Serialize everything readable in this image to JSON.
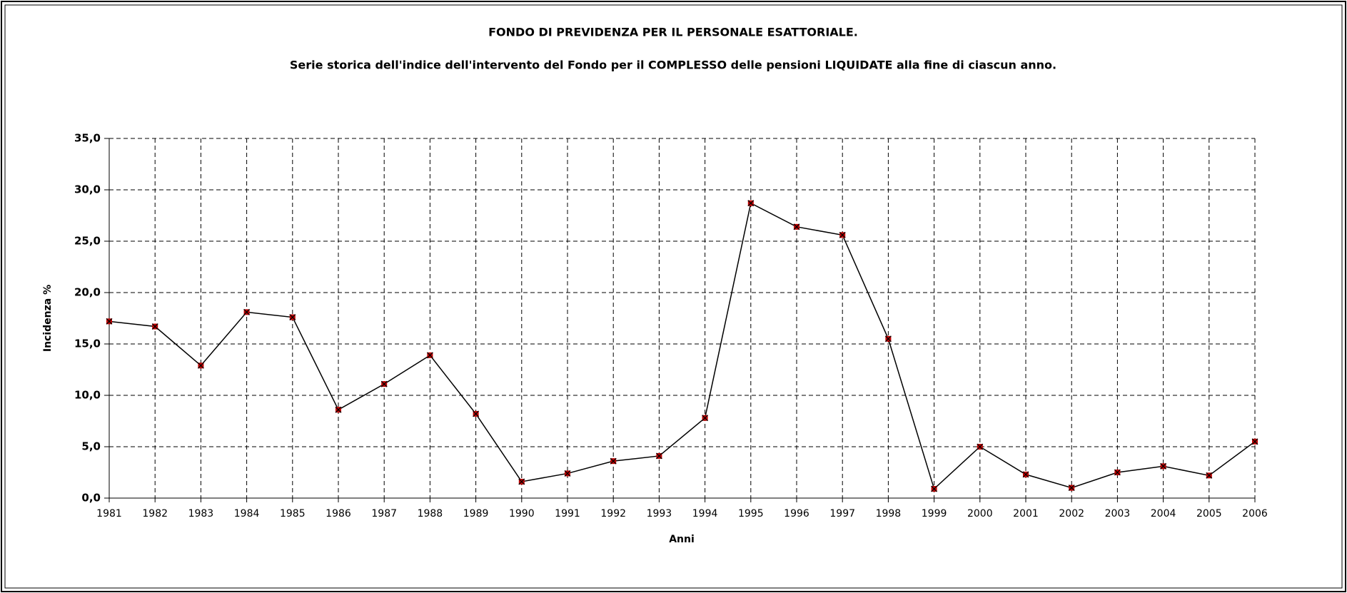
{
  "chart_data": {
    "type": "line",
    "title": "FONDO DI PREVIDENZA PER IL PERSONALE ESATTORIALE.",
    "subtitle": "Serie storica dell'indice dell'intervento del Fondo per il COMPLESSO delle pensioni LIQUIDATE alla fine di ciascun anno.",
    "xlabel": "Anni",
    "ylabel": "Incidenza %",
    "x": [
      1981,
      1982,
      1983,
      1984,
      1985,
      1986,
      1987,
      1988,
      1989,
      1990,
      1991,
      1992,
      1993,
      1994,
      1995,
      1996,
      1997,
      1998,
      1999,
      2000,
      2001,
      2002,
      2003,
      2004,
      2005,
      2006
    ],
    "series": [
      {
        "color": "#000000",
        "marker_color": "#c00000",
        "values": [
          17.2,
          16.7,
          12.9,
          18.1,
          17.6,
          8.6,
          11.1,
          13.9,
          8.2,
          1.6,
          2.4,
          3.6,
          4.1,
          7.8,
          28.7,
          26.4,
          25.6,
          15.5,
          0.9,
          5.0,
          2.3,
          1.0,
          2.5,
          3.1,
          2.2,
          5.5
        ]
      }
    ],
    "xlim": [
      1981,
      2006
    ],
    "xticks": [
      1981,
      1982,
      1983,
      1984,
      1985,
      1986,
      1987,
      1988,
      1989,
      1990,
      1991,
      1992,
      1993,
      1994,
      1995,
      1996,
      1997,
      1998,
      1999,
      2000,
      2001,
      2002,
      2003,
      2004,
      2005,
      2006
    ],
    "ylim": [
      0,
      35
    ],
    "yticks": [
      {
        "value": 0,
        "label": "0,0"
      },
      {
        "value": 5,
        "label": "5,0"
      },
      {
        "value": 10,
        "label": "10,0"
      },
      {
        "value": 15,
        "label": "15,0"
      },
      {
        "value": 20,
        "label": "20,0"
      },
      {
        "value": 25,
        "label": "25,0"
      },
      {
        "value": 30,
        "label": "30,0"
      },
      {
        "value": 35,
        "label": "35,0"
      }
    ],
    "grid": true
  }
}
